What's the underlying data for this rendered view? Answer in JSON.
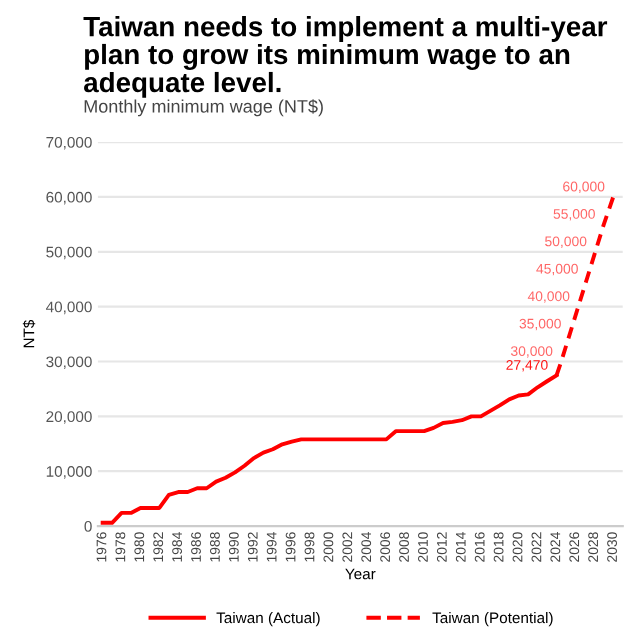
{
  "chart_data": {
    "type": "line",
    "title": "Taiwan needs to implement a multi-year plan to grow its minimum wage to an adequate level.",
    "subtitle": "Monthly minimum wage (NT$)",
    "xlabel": "Year",
    "ylabel": "NT$",
    "xlim": [
      1975.5,
      2031
    ],
    "xticks": [
      1976,
      1978,
      1980,
      1982,
      1984,
      1986,
      1988,
      1990,
      1992,
      1994,
      1996,
      1998,
      2000,
      2002,
      2004,
      2006,
      2008,
      2010,
      2012,
      2014,
      2016,
      2018,
      2020,
      2022,
      2024,
      2026,
      2028,
      2030
    ],
    "ylim": [
      0,
      70000
    ],
    "yticks": [
      {
        "value": 0,
        "label": "0"
      },
      {
        "value": 10000,
        "label": "10,000"
      },
      {
        "value": 20000,
        "label": "20,000"
      },
      {
        "value": 30000,
        "label": "30,000"
      },
      {
        "value": 40000,
        "label": "40,000"
      },
      {
        "value": 50000,
        "label": "50,000"
      },
      {
        "value": 60000,
        "label": "60,000"
      },
      {
        "value": 70000,
        "label": "70,000"
      }
    ],
    "grid": "y",
    "legend": "bottom",
    "marker": "none",
    "series": [
      {
        "name": "Taiwan (Actual)",
        "color": "#ff0000",
        "line_style": "solid",
        "x": [
          1976,
          1977,
          1978,
          1979,
          1980,
          1981,
          1982,
          1983,
          1984,
          1985,
          1986,
          1987,
          1988,
          1989,
          1990,
          1991,
          1992,
          1993,
          1994,
          1995,
          1996,
          1997,
          1998,
          1999,
          2000,
          2001,
          2002,
          2003,
          2004,
          2005,
          2006,
          2007,
          2008,
          2009,
          2010,
          2011,
          2012,
          2013,
          2014,
          2015,
          2016,
          2017,
          2018,
          2019,
          2020,
          2021,
          2022,
          2023,
          2024
        ],
        "values": [
          600,
          600,
          2400,
          2400,
          3300,
          3300,
          3300,
          5700,
          6200,
          6200,
          6900,
          6900,
          8100,
          8800,
          9800,
          11000,
          12400,
          13400,
          14000,
          14900,
          15400,
          15800,
          15800,
          15800,
          15800,
          15800,
          15800,
          15800,
          15800,
          15800,
          15800,
          17300,
          17300,
          17300,
          17300,
          17900,
          18800,
          19000,
          19300,
          20000,
          20000,
          21000,
          22000,
          23100,
          23800,
          24000,
          25300,
          26400,
          27470
        ],
        "value_labels": [
          null,
          null,
          null,
          null,
          null,
          null,
          null,
          null,
          null,
          null,
          null,
          null,
          null,
          null,
          null,
          null,
          null,
          null,
          null,
          null,
          null,
          null,
          null,
          null,
          null,
          null,
          null,
          null,
          null,
          null,
          null,
          null,
          null,
          null,
          null,
          null,
          null,
          null,
          null,
          null,
          null,
          null,
          null,
          null,
          null,
          null,
          null,
          null,
          "27,470"
        ]
      },
      {
        "name": "Taiwan (Potential)",
        "color": "#ff0000",
        "line_style": "dashed",
        "x": [
          2024,
          2024.5,
          2025.4,
          2026.3,
          2027.2,
          2028.1,
          2029,
          2030
        ],
        "values": [
          27470,
          30000,
          35000,
          40000,
          45000,
          50000,
          55000,
          60000
        ],
        "value_labels": [
          null,
          "30,000",
          "35,000",
          "40,000",
          "45,000",
          "50,000",
          "55,000",
          "60,000"
        ]
      }
    ]
  }
}
